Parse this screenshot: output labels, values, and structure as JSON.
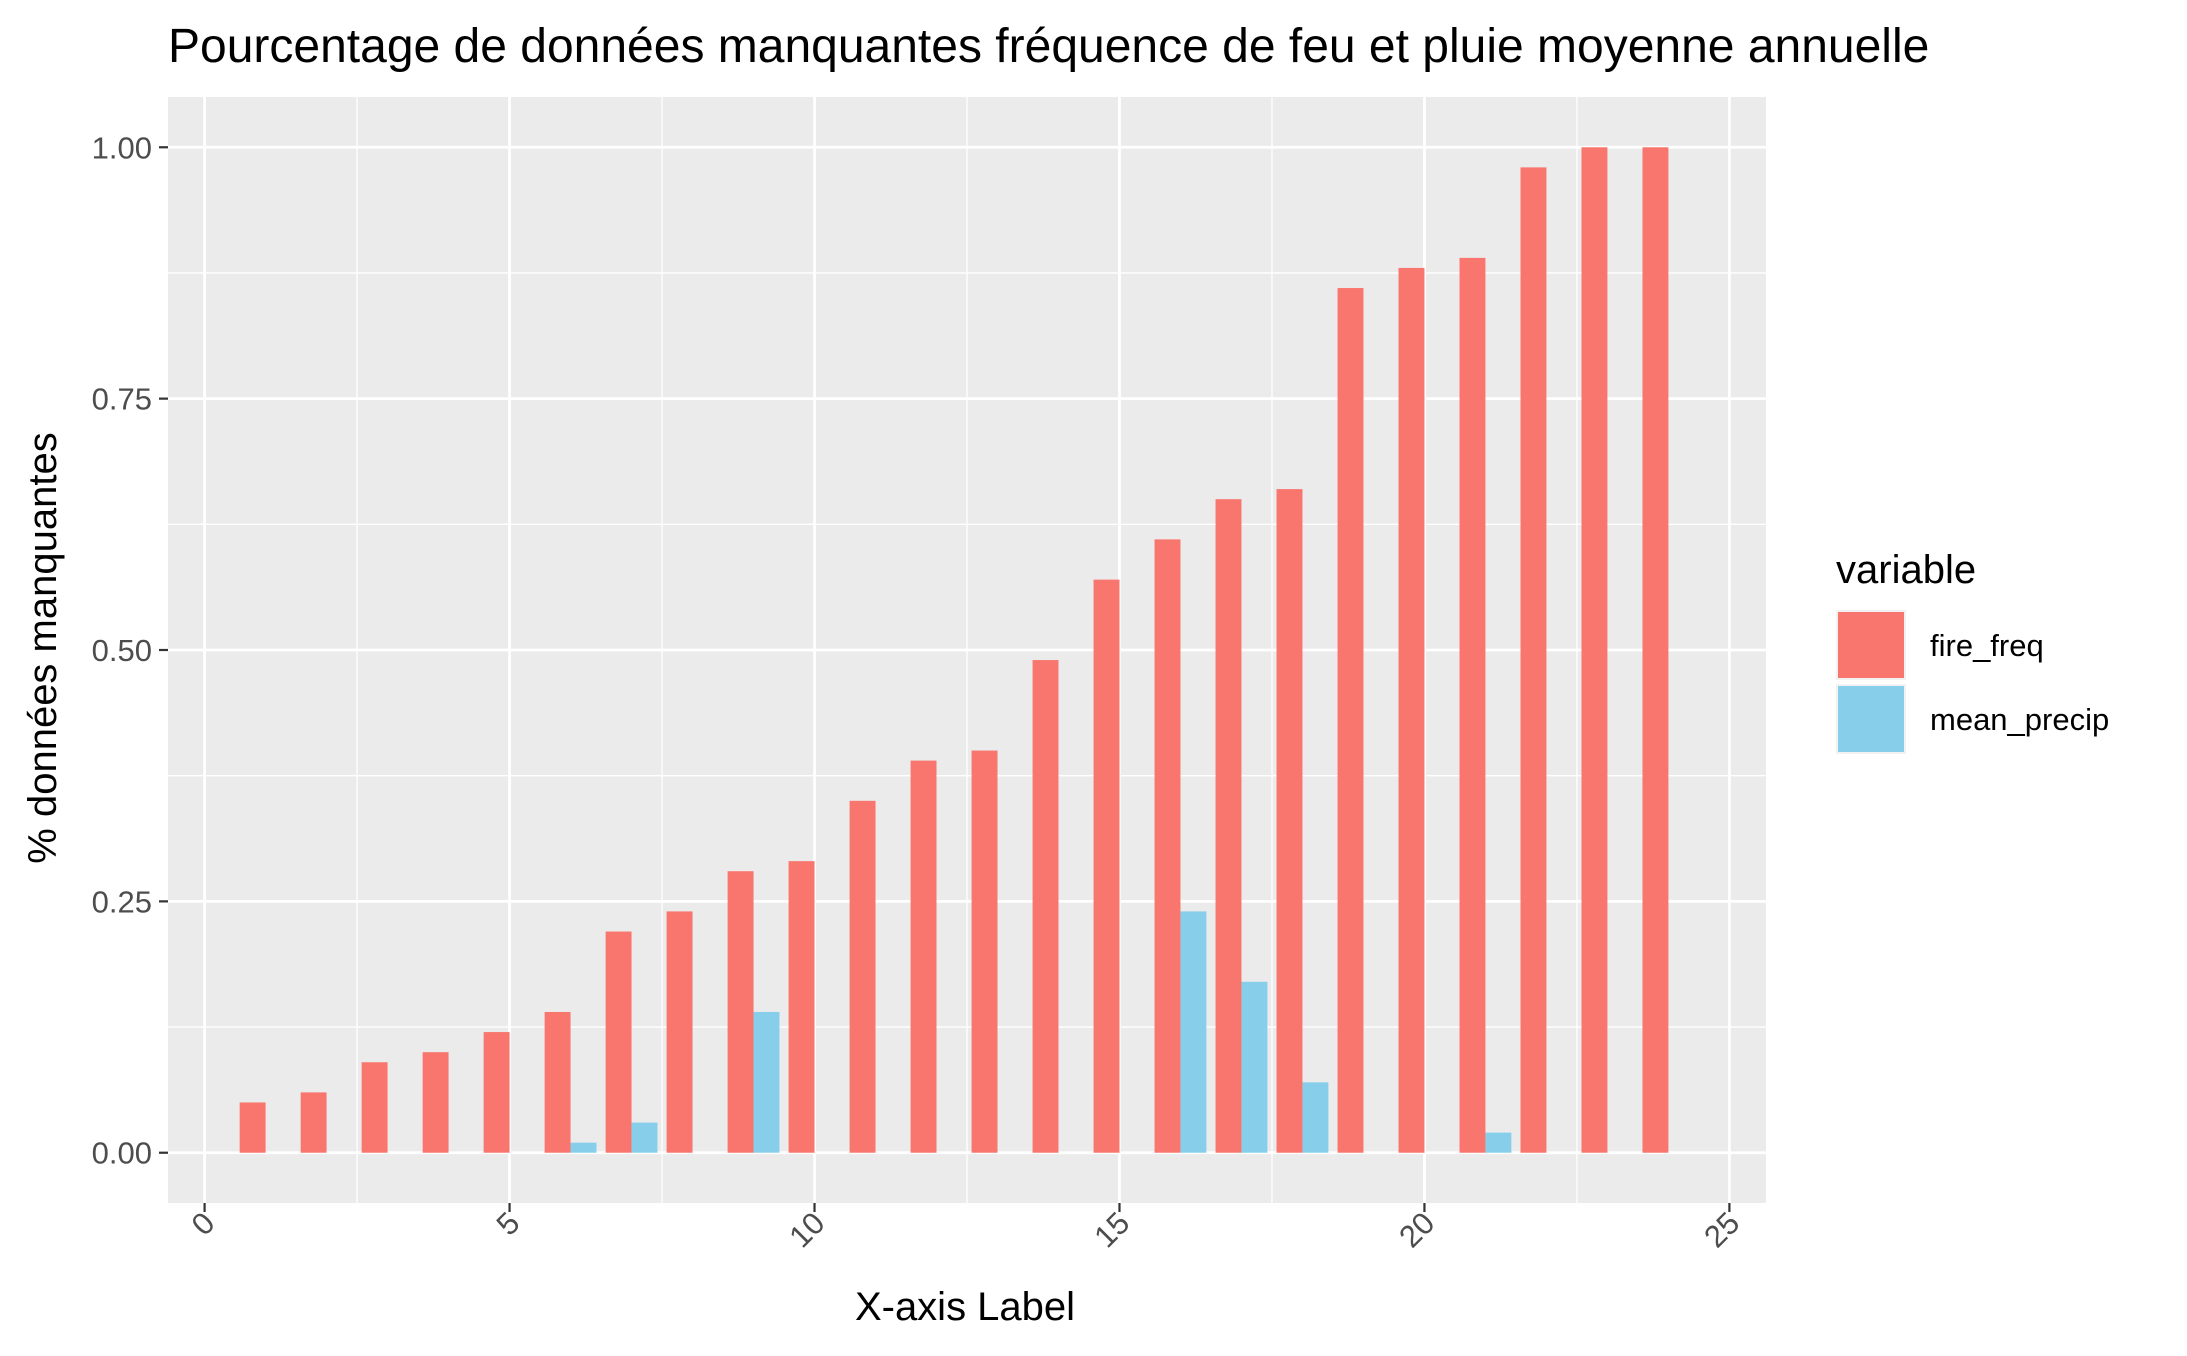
{
  "chart_data": {
    "type": "bar",
    "title": "Pourcentage de données manquantes fréquence de feu et pluie moyenne annuelle",
    "xlabel": "X-axis Label",
    "ylabel": "% données manquantes",
    "xlim": [
      -0.6,
      25.6
    ],
    "ylim": [
      -0.05,
      1.05
    ],
    "xticks": [
      0,
      5,
      10,
      15,
      20,
      25
    ],
    "yticks": [
      0.0,
      0.25,
      0.5,
      0.75,
      1.0
    ],
    "ytick_labels": [
      "0.00",
      "0.25",
      "0.50",
      "0.75",
      "1.00"
    ],
    "grid": true,
    "legend": {
      "title": "variable",
      "position": "right"
    },
    "series": [
      {
        "name": "fire_freq",
        "color": "#F8766D",
        "x": [
          1,
          2,
          3,
          4,
          5,
          6,
          7,
          8,
          9,
          10,
          11,
          12,
          13,
          14,
          15,
          16,
          17,
          18,
          19,
          20,
          21,
          22,
          23,
          24
        ],
        "values": [
          0.05,
          0.06,
          0.09,
          0.1,
          0.12,
          0.14,
          0.22,
          0.24,
          0.28,
          0.29,
          0.35,
          0.39,
          0.4,
          0.49,
          0.57,
          0.61,
          0.65,
          0.66,
          0.86,
          0.88,
          0.89,
          0.98,
          1.0,
          1.0
        ]
      },
      {
        "name": "mean_precip",
        "color": "#87CEEB",
        "x": [
          1,
          2,
          3,
          4,
          5,
          6,
          7,
          8,
          9,
          10,
          11,
          12,
          13,
          14,
          15,
          16,
          17,
          18,
          19,
          20,
          21,
          22,
          23,
          24
        ],
        "values": [
          0,
          0,
          0,
          0,
          0,
          0.01,
          0.03,
          0,
          0.14,
          0,
          0,
          0,
          0,
          0,
          0,
          0.24,
          0.17,
          0.07,
          0,
          0,
          0.02,
          0,
          0,
          0
        ]
      }
    ]
  },
  "colors": {
    "panel_background": "#EBEBEB",
    "grid_major": "#FFFFFF",
    "text": "#000000",
    "tick_text": "#4D4D4D"
  }
}
